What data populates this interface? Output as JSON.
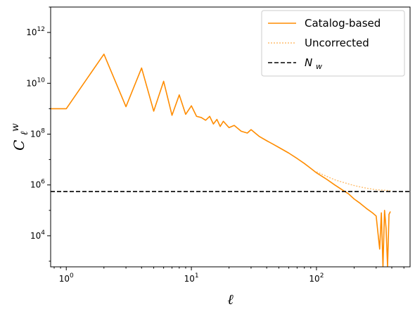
{
  "chart_data": {
    "type": "line",
    "title": "",
    "xlabel": "ℓ",
    "ylabel_base": "C",
    "ylabel_sub": "ℓ",
    "ylabel_sup": "w",
    "xscale": "log",
    "yscale": "log",
    "xlim": [
      0.75,
      560
    ],
    "ylim": [
      600,
      10000000000000.0
    ],
    "grid": false,
    "legend_position": "top-right",
    "x_ticks": [
      {
        "value": 1,
        "base": "10",
        "exp": "0"
      },
      {
        "value": 10,
        "base": "10",
        "exp": "1"
      },
      {
        "value": 100,
        "base": "10",
        "exp": "2"
      }
    ],
    "y_ticks": [
      {
        "value": 10000,
        "base": "10",
        "exp": "4"
      },
      {
        "value": 1000000,
        "base": "10",
        "exp": "6"
      },
      {
        "value": 100000000,
        "base": "10",
        "exp": "8"
      },
      {
        "value": 10000000000,
        "base": "10",
        "exp": "10"
      },
      {
        "value": 1000000000000,
        "base": "10",
        "exp": "12"
      }
    ],
    "series": [
      {
        "name": "Catalog-based",
        "color": "#ff8c00",
        "style": "solid",
        "points": [
          [
            0.75,
            1000000000.0
          ],
          [
            1,
            1000000000.0
          ],
          [
            2,
            140000000000.0
          ],
          [
            3,
            1200000000.0
          ],
          [
            4,
            40000000000.0
          ],
          [
            5,
            800000000.0
          ],
          [
            6,
            12000000000.0
          ],
          [
            7,
            550000000.0
          ],
          [
            8,
            3500000000.0
          ],
          [
            9,
            600000000.0
          ],
          [
            10,
            1300000000.0
          ],
          [
            11,
            500000000.0
          ],
          [
            12,
            450000000.0
          ],
          [
            13,
            350000000.0
          ],
          [
            14,
            500000000.0
          ],
          [
            15,
            250000000.0
          ],
          [
            16,
            380000000.0
          ],
          [
            17,
            200000000.0
          ],
          [
            18,
            320000000.0
          ],
          [
            20,
            180000000.0
          ],
          [
            22,
            220000000.0
          ],
          [
            25,
            130000000.0
          ],
          [
            28,
            110000000.0
          ],
          [
            30,
            150000000.0
          ],
          [
            35,
            80000000.0
          ],
          [
            40,
            55000000.0
          ],
          [
            45,
            40000000.0
          ],
          [
            50,
            30000000.0
          ],
          [
            60,
            18000000.0
          ],
          [
            70,
            11000000.0
          ],
          [
            80,
            7000000.0
          ],
          [
            90,
            4500000.0
          ],
          [
            100,
            3000000.0
          ],
          [
            120,
            1700000.0
          ],
          [
            140,
            1000000.0
          ],
          [
            160,
            650000.0
          ],
          [
            180,
            450000.0
          ],
          [
            200,
            280000.0
          ],
          [
            220,
            200000.0
          ],
          [
            250,
            120000.0
          ],
          [
            280,
            80000.0
          ],
          [
            300,
            60000.0
          ],
          [
            320,
            3000.0
          ],
          [
            330,
            80000.0
          ],
          [
            340,
            600
          ],
          [
            350,
            100000.0
          ],
          [
            360,
            20000.0
          ],
          [
            370,
            600
          ],
          [
            380,
            70000.0
          ],
          [
            390,
            90000.0
          ]
        ]
      },
      {
        "name": "Uncorrected",
        "color": "#ffbe6e",
        "style": "dotted",
        "points": [
          [
            100,
            3300000.0
          ],
          [
            120,
            2200000.0
          ],
          [
            140,
            1600000.0
          ],
          [
            160,
            1300000.0
          ],
          [
            180,
            1100000.0
          ],
          [
            200,
            950000.0
          ],
          [
            220,
            850000.0
          ],
          [
            250,
            750000.0
          ],
          [
            280,
            680000.0
          ],
          [
            300,
            650000.0
          ],
          [
            330,
            630000.0
          ],
          [
            360,
            610000.0
          ],
          [
            390,
            600000.0
          ]
        ]
      },
      {
        "name": "N_w",
        "legend_base": "N",
        "legend_sub": "w",
        "color": "#000000",
        "style": "dashed",
        "constant": 550000.0
      }
    ]
  }
}
